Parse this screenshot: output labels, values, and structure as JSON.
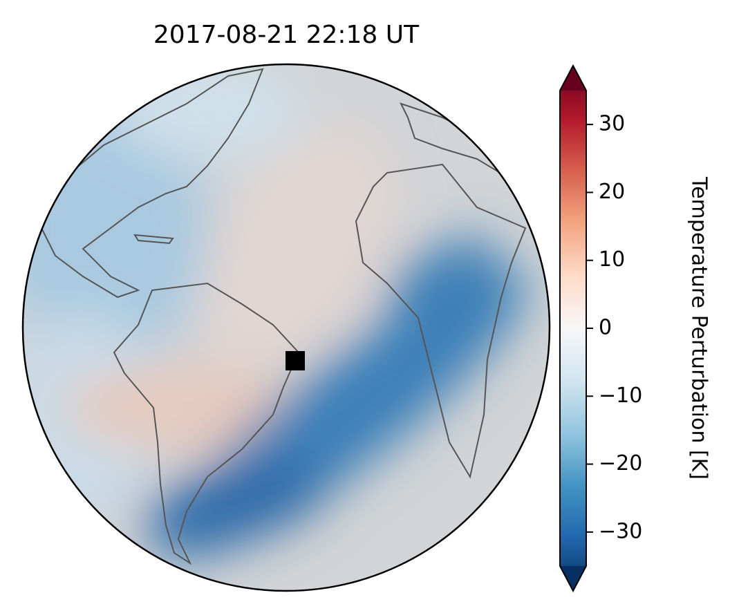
{
  "chart_data": {
    "type": "map",
    "title": "2017-08-21  22:18 UT",
    "colorbar": {
      "label": "Temperature Perturbation [K]",
      "lim": [
        -35,
        35
      ],
      "ticks": [
        {
          "value": -30,
          "label": "−30"
        },
        {
          "value": -20,
          "label": "−20"
        },
        {
          "value": -10,
          "label": "−10"
        },
        0,
        10,
        20,
        30
      ]
    }
  }
}
